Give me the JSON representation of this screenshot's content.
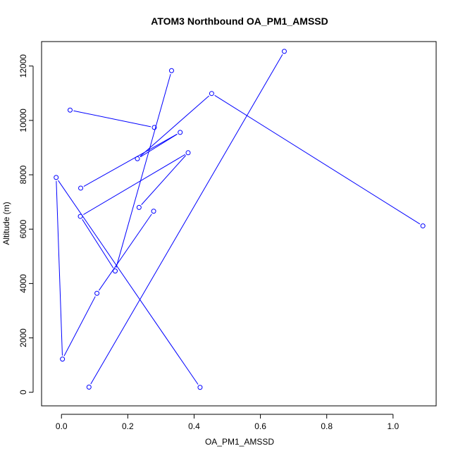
{
  "chart_data": {
    "type": "line",
    "title": "ATOM3 Northbound OA_PM1_AMSSD",
    "xlabel": "OA_PM1_AMSSD",
    "ylabel": "Altitude (m)",
    "xlim": [
      -0.06,
      1.13
    ],
    "ylim": [
      -500,
      12900
    ],
    "xticks": [
      0.0,
      0.2,
      0.4,
      0.6,
      0.8,
      1.0
    ],
    "xtick_labels": [
      "0.0",
      "0.2",
      "0.4",
      "0.6",
      "0.8",
      "1.0"
    ],
    "yticks": [
      0,
      2000,
      4000,
      6000,
      8000,
      10000,
      12000
    ],
    "ytick_labels": [
      "0",
      "2000",
      "4000",
      "6000",
      "8000",
      "10000",
      "12000"
    ],
    "color": "#0000ff",
    "marker": "open-circle",
    "grid": false,
    "series": [
      {
        "points": [
          [
            0.418,
            180
          ],
          [
            -0.016,
            7900
          ],
          [
            0.003,
            1220
          ],
          [
            0.107,
            3640
          ],
          [
            0.278,
            6660
          ]
        ]
      },
      {
        "points": [
          [
            0.332,
            11830
          ],
          [
            0.162,
            4460
          ],
          [
            0.057,
            6470
          ],
          [
            0.382,
            8810
          ],
          [
            0.234,
            6800
          ]
        ]
      },
      {
        "points": [
          [
            0.058,
            7510
          ],
          [
            0.358,
            9560
          ],
          [
            0.229,
            8590
          ],
          [
            0.453,
            10990
          ],
          [
            1.09,
            6120
          ]
        ]
      },
      {
        "points": [
          [
            0.026,
            10380
          ],
          [
            0.28,
            9740
          ]
        ]
      },
      {
        "points": [
          [
            0.083,
            190
          ],
          [
            0.672,
            12540
          ]
        ]
      }
    ]
  }
}
